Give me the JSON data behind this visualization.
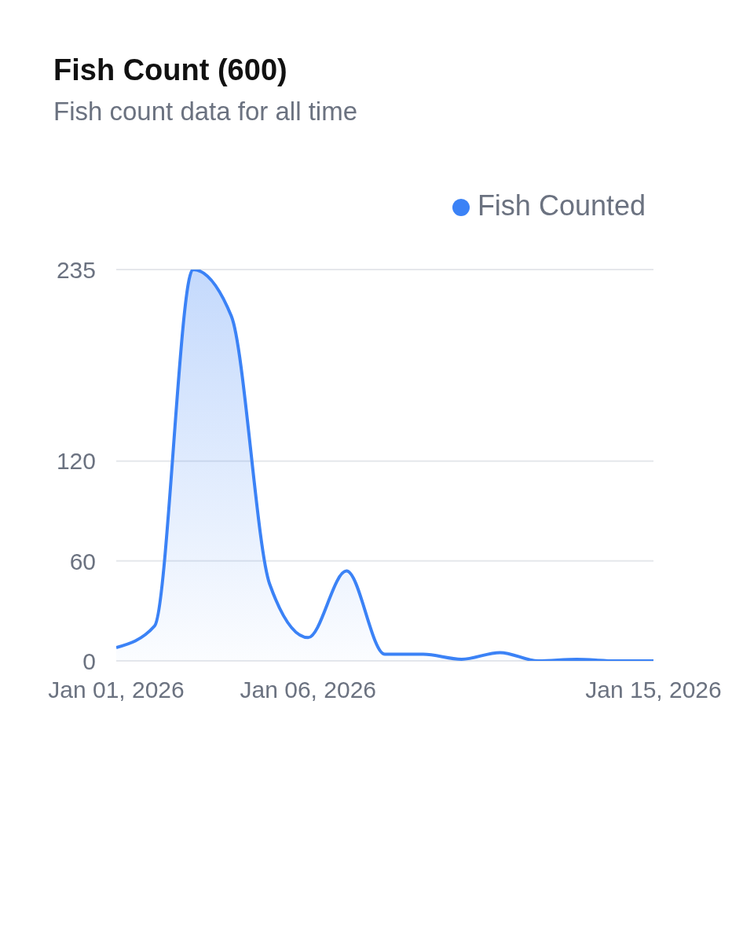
{
  "chart_data": {
    "type": "area",
    "title": "Fish Count (600)",
    "subtitle": "Fish count data for all time",
    "x": [
      "2026-01-01",
      "2026-01-02",
      "2026-01-03",
      "2026-01-04",
      "2026-01-05",
      "2026-01-06",
      "2026-01-07",
      "2026-01-08",
      "2026-01-09",
      "2026-01-10",
      "2026-01-11",
      "2026-01-12",
      "2026-01-13",
      "2026-01-14",
      "2026-01-15"
    ],
    "series": [
      {
        "name": "Fish Counted",
        "color": "#3b82f6",
        "values": [
          8,
          21,
          235,
          207,
          46,
          14,
          54,
          4,
          4,
          1,
          5,
          0,
          1,
          0,
          0
        ]
      }
    ],
    "xlim": [
      "2026-01-01",
      "2026-01-15"
    ],
    "xticks": [
      {
        "value": "2026-01-01",
        "label": "Jan 01, 2026"
      },
      {
        "value": "2026-01-06",
        "label": "Jan 06, 2026"
      },
      {
        "value": "2026-01-15",
        "label": "Jan 15, 2026"
      }
    ],
    "ylim": [
      0,
      235
    ],
    "yticks": [
      0,
      60,
      120,
      235
    ],
    "grid": "y",
    "legend": "top right",
    "marker": "none",
    "line_style": "solid"
  }
}
